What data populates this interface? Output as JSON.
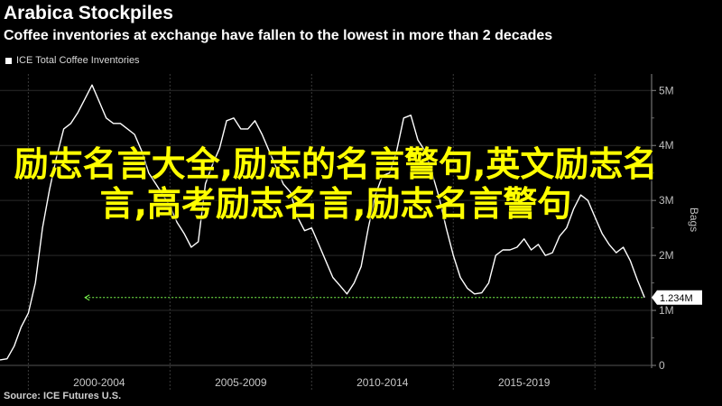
{
  "header": {
    "title": "Arabica Stockpiles",
    "subtitle": "Coffee inventories at exchange have fallen to the lowest in more than 2 decades"
  },
  "legend": {
    "label": "ICE Total Coffee Inventories"
  },
  "source": "Source: ICE Futures U.S.",
  "overlay_text": "励志名言大全,励志的名言警句,英文励志名言,高考励志名言,励志名言警句",
  "colors": {
    "background": "#000000",
    "line": "#ffffff",
    "grid": "#2a2a2a",
    "reference_line": "#7dff4f",
    "overlay": "#ffff00"
  },
  "chart_data": {
    "type": "line",
    "title": "",
    "xlabel": "",
    "ylabel": "Bags",
    "series": [
      {
        "name": "ICE Total Coffee Inventories",
        "x": [
          1999.0,
          1999.25,
          1999.5,
          1999.75,
          2000.0,
          2000.25,
          2000.5,
          2000.75,
          2001.0,
          2001.25,
          2001.5,
          2001.75,
          2002.0,
          2002.25,
          2002.5,
          2002.75,
          2003.0,
          2003.25,
          2003.5,
          2003.75,
          2004.0,
          2004.25,
          2004.5,
          2004.75,
          2005.0,
          2005.25,
          2005.5,
          2005.75,
          2006.0,
          2006.25,
          2006.5,
          2006.75,
          2007.0,
          2007.25,
          2007.5,
          2007.75,
          2008.0,
          2008.25,
          2008.5,
          2008.75,
          2009.0,
          2009.25,
          2009.5,
          2009.75,
          2010.0,
          2010.25,
          2010.5,
          2010.75,
          2011.0,
          2011.25,
          2011.5,
          2011.75,
          2012.0,
          2012.25,
          2012.5,
          2012.75,
          2013.0,
          2013.25,
          2013.5,
          2013.75,
          2014.0,
          2014.25,
          2014.5,
          2014.75,
          2015.0,
          2015.25,
          2015.5,
          2015.75,
          2016.0,
          2016.25,
          2016.5,
          2016.75,
          2017.0,
          2017.25,
          2017.5,
          2017.75,
          2018.0,
          2018.25,
          2018.5,
          2018.75,
          2019.0,
          2019.25,
          2019.5,
          2019.75,
          2020.0,
          2020.25,
          2020.5,
          2020.75,
          2021.0,
          2021.25,
          2021.5,
          2021.75
        ],
        "values": [
          0.1,
          0.12,
          0.35,
          0.7,
          0.95,
          1.5,
          2.5,
          3.2,
          3.8,
          4.3,
          4.4,
          4.6,
          4.85,
          5.1,
          4.8,
          4.5,
          4.4,
          4.4,
          4.3,
          4.2,
          3.9,
          3.5,
          3.3,
          3.1,
          2.9,
          2.6,
          2.4,
          2.15,
          2.25,
          3.3,
          3.65,
          3.95,
          4.45,
          4.5,
          4.3,
          4.3,
          4.45,
          4.2,
          3.9,
          3.6,
          3.3,
          3.15,
          2.7,
          2.45,
          2.5,
          2.2,
          1.9,
          1.6,
          1.45,
          1.3,
          1.5,
          1.8,
          2.5,
          3.1,
          3.45,
          3.5,
          3.9,
          4.5,
          4.55,
          4.1,
          3.9,
          3.5,
          3.05,
          2.5,
          2.0,
          1.6,
          1.4,
          1.3,
          1.32,
          1.5,
          2.0,
          2.1,
          2.1,
          2.15,
          2.3,
          2.1,
          2.2,
          2.0,
          2.05,
          2.35,
          2.5,
          2.85,
          3.1,
          3.0,
          2.7,
          2.4,
          2.2,
          2.05,
          2.15,
          1.9,
          1.55,
          1.234
        ]
      }
    ],
    "last_value_label": "1.234M",
    "reference_value": 1.234,
    "ylim": [
      0,
      5.3
    ],
    "y_ticks": [
      0,
      1,
      2,
      3,
      4,
      5
    ],
    "y_tick_labels": [
      "0",
      "1M",
      "2M",
      "3M",
      "4M",
      "5M"
    ],
    "xlim": [
      1999.0,
      2022.0
    ],
    "x_tick_labels": [
      {
        "label": "2000-2004",
        "center": 2002.5
      },
      {
        "label": "2005-2009",
        "center": 2007.5
      },
      {
        "label": "2010-2014",
        "center": 2012.5
      },
      {
        "label": "2015-2019",
        "center": 2017.5
      }
    ],
    "x_separators": [
      2000.0,
      2005.0,
      2010.0,
      2015.0,
      2020.0
    ],
    "grid": true,
    "legend_position": "top-left"
  }
}
